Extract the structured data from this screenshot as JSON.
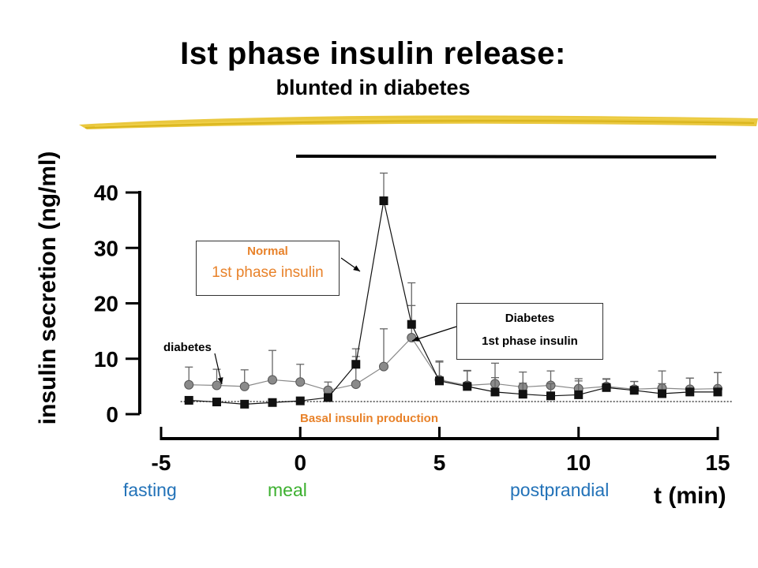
{
  "header": {
    "title": "Ist phase insulin release:",
    "subtitle": "blunted in diabetes"
  },
  "chart_data": {
    "type": "line",
    "xlabel": "t (min)",
    "ylabel": "insulin secretion (ng/ml)",
    "xlim": [
      -5,
      15
    ],
    "ylim": [
      0,
      40
    ],
    "x_ticks": [
      "-5",
      "0",
      "5",
      "10",
      "15"
    ],
    "y_ticks": [
      "0",
      "10",
      "20",
      "30",
      "40"
    ],
    "series": [
      {
        "name": "Normal",
        "marker": "square",
        "color": "#111111",
        "x": [
          -4,
          -3,
          -2,
          -1,
          0,
          1,
          2,
          3,
          4,
          5,
          6,
          7,
          8,
          9,
          10,
          11,
          12,
          13,
          14,
          15
        ],
        "values": [
          2.5,
          2.2,
          1.8,
          2.1,
          2.4,
          3.0,
          9.0,
          38.5,
          16.2,
          6.0,
          5.0,
          4.0,
          3.6,
          3.3,
          3.5,
          4.8,
          4.3,
          3.7,
          4.0,
          4.0
        ],
        "error": [
          0,
          0,
          0,
          0,
          0,
          0,
          2.8,
          5.0,
          7.5,
          3.4,
          2.8,
          2.6,
          2.0,
          2.2,
          2.5,
          1.6,
          1.6,
          1.8,
          2.5,
          3.5
        ]
      },
      {
        "name": "diabetes",
        "marker": "circle",
        "color": "#777777",
        "x": [
          -4,
          -3,
          -2,
          -1,
          0,
          1,
          2,
          3,
          4,
          5,
          6,
          7,
          8,
          9,
          10,
          11,
          12,
          13,
          14,
          15
        ],
        "values": [
          5.3,
          5.2,
          5.0,
          6.2,
          5.8,
          4.3,
          5.4,
          8.6,
          13.8,
          6.2,
          5.2,
          5.5,
          4.9,
          5.2,
          4.6,
          5.0,
          4.5,
          4.7,
          4.5,
          4.6
        ],
        "error": [
          3.2,
          2.9,
          3.0,
          5.3,
          3.2,
          1.5,
          5.0,
          6.8,
          5.8,
          3.4,
          2.7,
          3.7,
          2.7,
          2.6,
          1.8,
          1.3,
          1.4,
          3.1,
          2.0,
          2.9
        ]
      }
    ],
    "basal_line": {
      "label": "Basal insulin production",
      "value": 2.0
    },
    "annotations": {
      "normal_title": "Normal",
      "normal_text": "1st phase insulin",
      "diabetes_title": "Diabetes",
      "diabetes_text": "1st phase insulin",
      "diabetes_small": "diabetes"
    },
    "phases": [
      "fasting",
      "meal",
      "postprandial"
    ],
    "colors": {
      "accent_orange": "#e8822a",
      "phase_blue": "#2272b8",
      "highlight_yellow": "#e8c22a"
    }
  }
}
